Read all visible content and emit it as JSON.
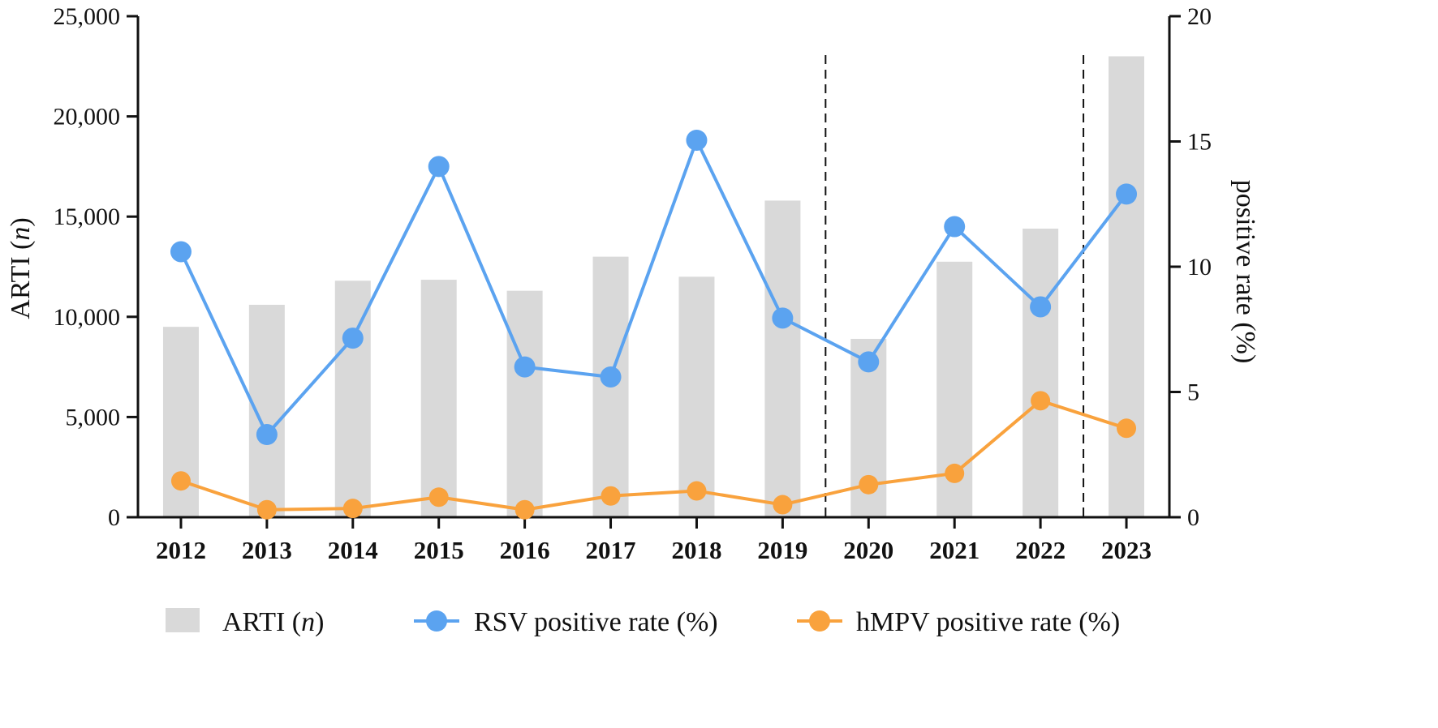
{
  "chart_data": {
    "type": "bar+line",
    "categories": [
      "2012",
      "2013",
      "2014",
      "2015",
      "2016",
      "2017",
      "2018",
      "2019",
      "2020",
      "2021",
      "2022",
      "2023"
    ],
    "bar_series": {
      "name": "ARTI",
      "unit_italic": "n",
      "color": "#d9d9d9",
      "axis": "left",
      "values": [
        9500,
        10600,
        11800,
        11850,
        11300,
        13000,
        12000,
        15800,
        8900,
        12750,
        14400,
        23000
      ]
    },
    "line_series": [
      {
        "name": "RSV positive rate (%)",
        "color": "#5ba3f0",
        "axis": "right",
        "values": [
          10.6,
          3.3,
          7.15,
          14.0,
          6.0,
          5.6,
          15.05,
          7.95,
          6.2,
          11.6,
          8.4,
          12.9
        ]
      },
      {
        "name": "hMPV positive rate (%)",
        "color": "#f9a23d",
        "axis": "right",
        "values": [
          1.45,
          0.3,
          0.35,
          0.8,
          0.3,
          0.85,
          1.05,
          0.5,
          1.3,
          1.75,
          4.65,
          3.55
        ]
      }
    ],
    "y_left": {
      "label": "ARTI",
      "label_italic": "n",
      "ticks": [
        "0",
        "5,000",
        "10,000",
        "15,000",
        "20,000",
        "25,000"
      ],
      "tick_values": [
        0,
        5000,
        10000,
        15000,
        20000,
        25000
      ],
      "ylim": [
        0,
        25000
      ]
    },
    "y_right": {
      "label": "positive rate (%)",
      "ticks": [
        "0",
        "5",
        "10",
        "15",
        "20"
      ],
      "tick_values": [
        0,
        5,
        10,
        15,
        20
      ],
      "ylim": [
        0,
        20
      ]
    },
    "reference_lines": [
      {
        "between": [
          "2019",
          "2020"
        ],
        "style": "dashed"
      },
      {
        "between": [
          "2022",
          "2023"
        ],
        "style": "dashed"
      }
    ],
    "legend": {
      "position": "bottom",
      "items": [
        {
          "label": "ARTI",
          "label_italic": "n",
          "kind": "bar"
        },
        {
          "label": "RSV positive rate (%)",
          "kind": "line"
        },
        {
          "label": "hMPV positive rate (%)",
          "kind": "line"
        }
      ]
    }
  }
}
